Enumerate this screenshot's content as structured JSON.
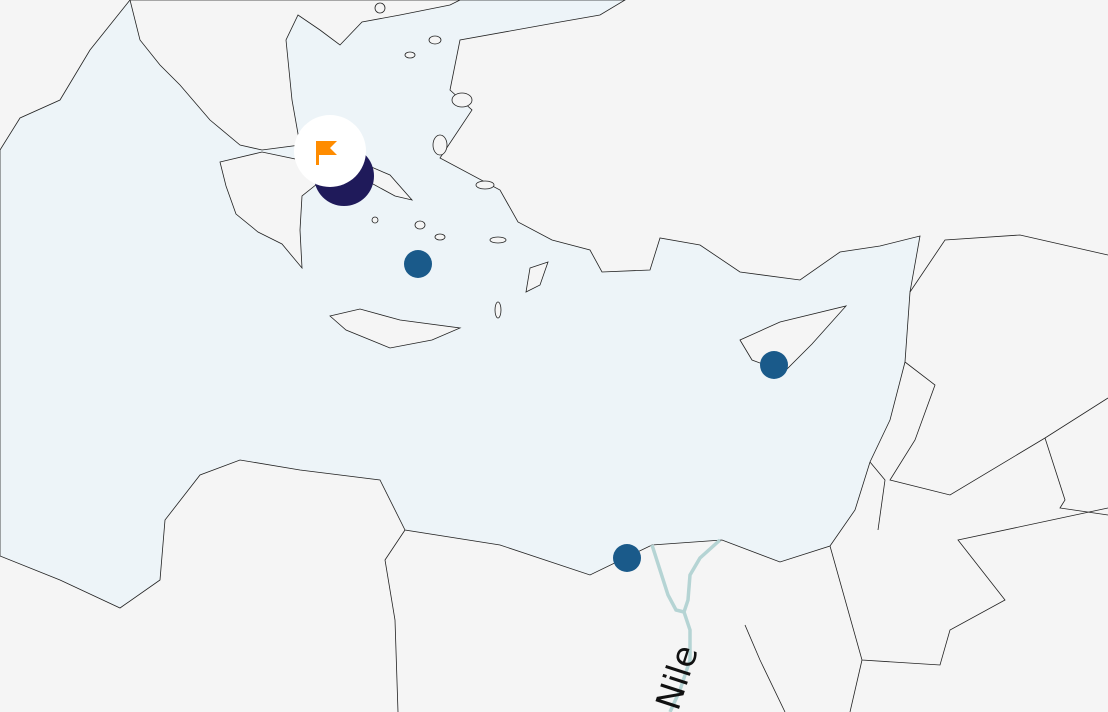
{
  "colors": {
    "sea": "#edf4f8",
    "land": "#f5f5f5",
    "river": "#b5d4d4",
    "marker": "#1a5a8a",
    "selected_marker": "#1f1a5a",
    "flag": "#ff8c00"
  },
  "labels": {
    "river": "Nile"
  },
  "markers": [
    {
      "type": "selected",
      "icon": "flag-icon"
    },
    {
      "type": "point"
    },
    {
      "type": "point"
    },
    {
      "type": "point"
    }
  ]
}
